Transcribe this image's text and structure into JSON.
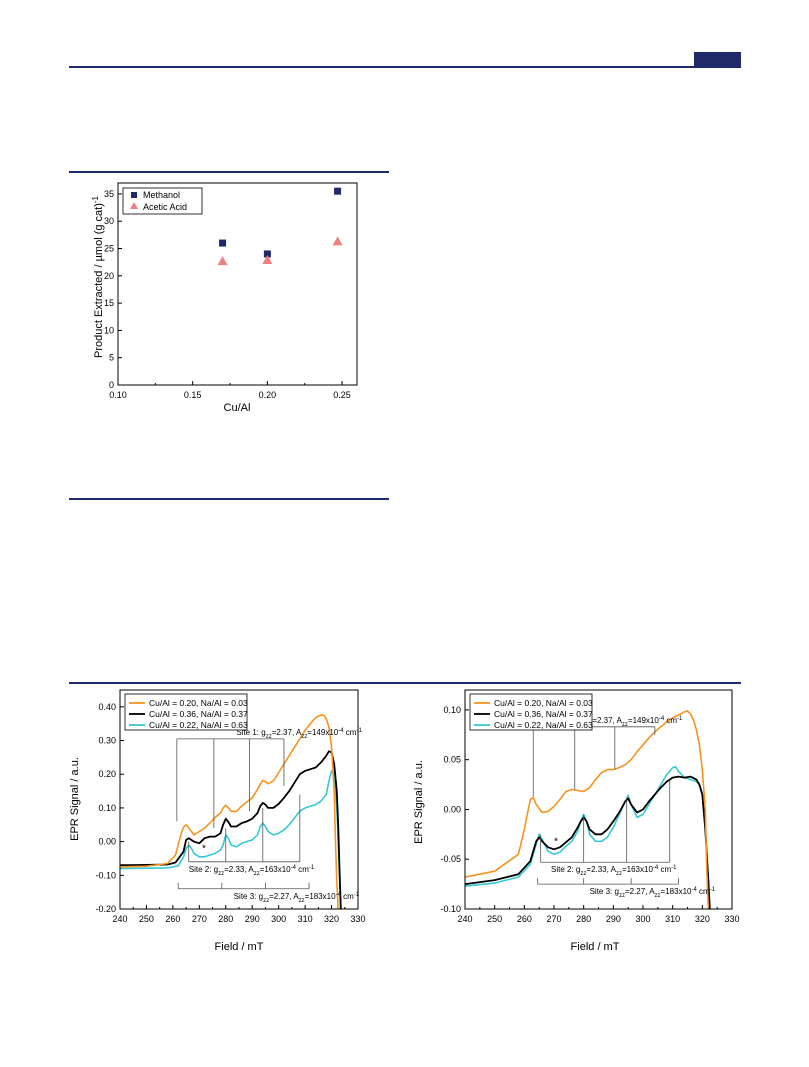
{
  "colors": {
    "rule": "#1f2a6b",
    "methanol": "#1f2a6b",
    "acetic": "#f08080",
    "orange": "#f7931e",
    "black": "#000000",
    "cyan": "#36c8d8"
  },
  "chart_data": [
    {
      "type": "scatter",
      "xlabel": "Cu/Al",
      "ylabel": "Product Extracted / µmol (g cat)",
      "ylabel_sup": "-1",
      "xlim": [
        0.1,
        0.26
      ],
      "ylim": [
        0,
        37
      ],
      "xticks": [
        0.1,
        0.15,
        0.2,
        0.25
      ],
      "xtick_labels": [
        "0.10",
        "0.15",
        "0.20",
        "0.25"
      ],
      "yticks": [
        0,
        5,
        10,
        15,
        20,
        25,
        30,
        35
      ],
      "ytick_labels": [
        "0",
        "5",
        "10",
        "15",
        "20",
        "25",
        "30",
        "35"
      ],
      "legend_position": "top-left",
      "series": [
        {
          "name": "Methanol",
          "marker": "square",
          "x": [
            0.17,
            0.2,
            0.247
          ],
          "y": [
            26.0,
            24.0,
            35.5
          ]
        },
        {
          "name": "Acetic Acid",
          "marker": "triangle",
          "x": [
            0.17,
            0.2,
            0.247
          ],
          "y": [
            22.7,
            22.9,
            26.3
          ]
        }
      ]
    },
    {
      "type": "line",
      "xlabel": "Field / mT",
      "ylabel": "EPR Signal / a.u.",
      "xlim": [
        240,
        330
      ],
      "ylim": [
        -0.2,
        0.45
      ],
      "xticks": [
        240,
        250,
        260,
        270,
        280,
        290,
        300,
        310,
        320,
        330
      ],
      "xtick_labels": [
        "240",
        "250",
        "260",
        "270",
        "280",
        "290",
        "300",
        "310",
        "320",
        "330"
      ],
      "yticks": [
        -0.2,
        -0.1,
        0.0,
        0.1,
        0.2,
        0.3,
        0.4
      ],
      "ytick_labels": [
        "-0.20",
        "-0.10",
        "0.00",
        "0.10",
        "0.20",
        "0.30",
        "0.40"
      ],
      "legend_position": "top-left",
      "legend": [
        "Cu/Al = 0.20, Na/Al = 0.03",
        "Cu/Al = 0.36, Na/Al = 0.37",
        "Cu/Al = 0.22, Na/Al = 0.63"
      ],
      "annotations": {
        "site1": {
          "text": "Site 1: g",
          "sub": "zz",
          "sup": "1",
          "text2": "=2.37, A",
          "sub2": "zz",
          "sup2": "1",
          "text3": "=149x10",
          "sup3": "-4",
          "text4": " cm",
          "sup4": "-1"
        },
        "site2": {
          "text": "Site 2: g",
          "sub": "zz",
          "sup": "2",
          "text2": "=2.33, A",
          "sub2": "zz",
          "sup2": "2",
          "text3": "=163x10",
          "sup3": "-4",
          "text4": " cm",
          "sup4": "-1"
        },
        "site3": {
          "text": "Site 3: g",
          "sub": "zz",
          "sup": "3",
          "text2": "=2.27, A",
          "sub2": "zz",
          "sup2": "3",
          "text3": "=183x10",
          "sup3": "-4",
          "text4": " cm",
          "sup4": "-1"
        },
        "star": "*"
      },
      "site1_lines": [
        261.5,
        275.5,
        289.0,
        302.0
      ],
      "site2_lines": [
        266.0,
        280.0,
        294.0,
        308.0
      ],
      "site3_lines": [
        262.0,
        278.5,
        295.0,
        311.5
      ],
      "series": [
        {
          "name": "Cu/Al = 0.20, Na/Al = 0.03",
          "color": "#f7931e",
          "x": [
            240,
            250,
            258,
            261,
            263,
            264,
            265,
            266,
            268,
            270,
            272,
            274,
            276,
            278,
            279,
            280,
            281,
            282,
            284,
            286,
            288,
            290,
            292,
            293,
            294,
            295,
            296,
            298,
            300,
            302,
            304,
            306,
            308,
            310,
            312,
            314,
            316,
            317,
            318,
            319,
            320,
            321,
            321.5,
            322,
            322.5
          ],
          "y": [
            -0.075,
            -0.073,
            -0.065,
            -0.04,
            0.02,
            0.043,
            0.05,
            0.04,
            0.02,
            0.03,
            0.04,
            0.055,
            0.072,
            0.085,
            0.1,
            0.108,
            0.1,
            0.09,
            0.09,
            0.105,
            0.118,
            0.13,
            0.155,
            0.17,
            0.182,
            0.178,
            0.172,
            0.18,
            0.205,
            0.23,
            0.255,
            0.28,
            0.305,
            0.33,
            0.35,
            0.368,
            0.376,
            0.375,
            0.365,
            0.34,
            0.28,
            0.15,
            0.0,
            -0.12,
            -0.2
          ]
        },
        {
          "name": "Cu/Al = 0.36, Na/Al = 0.37",
          "color": "#000000",
          "x": [
            240,
            250,
            258,
            261,
            264,
            265,
            266,
            268,
            270,
            272,
            274,
            276,
            278,
            279,
            280,
            281,
            282,
            284,
            286,
            288,
            290,
            292,
            293,
            294,
            295,
            296,
            298,
            300,
            302,
            304,
            306,
            308,
            310,
            312,
            314,
            316,
            318,
            319,
            320,
            321,
            322,
            322.5,
            323,
            323.5
          ],
          "y": [
            -0.07,
            -0.069,
            -0.068,
            -0.062,
            -0.03,
            0.005,
            0.01,
            0.0,
            -0.005,
            0.01,
            0.015,
            0.015,
            0.025,
            0.05,
            0.068,
            0.058,
            0.045,
            0.045,
            0.055,
            0.06,
            0.068,
            0.085,
            0.105,
            0.115,
            0.11,
            0.1,
            0.1,
            0.112,
            0.13,
            0.15,
            0.175,
            0.2,
            0.21,
            0.215,
            0.22,
            0.235,
            0.255,
            0.268,
            0.265,
            0.23,
            0.15,
            0.05,
            -0.08,
            -0.2
          ]
        },
        {
          "name": "Cu/Al = 0.22, Na/Al = 0.63",
          "color": "#36c8d8",
          "x": [
            240,
            250,
            258,
            262,
            264,
            265,
            266,
            267,
            268,
            270,
            272,
            274,
            276,
            278,
            279,
            280,
            281,
            282,
            284,
            286,
            288,
            290,
            292,
            293,
            294,
            295,
            296,
            298,
            300,
            302,
            304,
            306,
            308,
            310,
            312,
            314,
            316,
            318,
            319,
            320,
            321,
            322,
            322.5,
            323,
            323.5
          ],
          "y": [
            -0.08,
            -0.079,
            -0.078,
            -0.072,
            -0.045,
            -0.02,
            -0.01,
            -0.02,
            -0.035,
            -0.045,
            -0.045,
            -0.04,
            -0.035,
            -0.025,
            -0.01,
            0.02,
            0.01,
            -0.01,
            -0.015,
            -0.005,
            0.0,
            0.005,
            0.02,
            0.045,
            0.055,
            0.045,
            0.03,
            0.02,
            0.025,
            0.035,
            0.05,
            0.07,
            0.09,
            0.1,
            0.105,
            0.11,
            0.12,
            0.14,
            0.18,
            0.21,
            0.2,
            0.1,
            0.0,
            -0.1,
            -0.2
          ]
        }
      ]
    },
    {
      "type": "line",
      "xlabel": "Field / mT",
      "ylabel": "EPR Signal / a.u.",
      "xlim": [
        240,
        330
      ],
      "ylim": [
        -0.1,
        0.12
      ],
      "xticks": [
        240,
        250,
        260,
        270,
        280,
        290,
        300,
        310,
        320,
        330
      ],
      "xtick_labels": [
        "240",
        "250",
        "260",
        "270",
        "280",
        "290",
        "300",
        "310",
        "320",
        "330"
      ],
      "yticks": [
        -0.1,
        -0.05,
        0.0,
        0.05,
        0.1
      ],
      "ytick_labels": [
        "-0.10",
        "-0.05",
        "0.00",
        "0.05",
        "0.10"
      ],
      "legend_position": "top-left",
      "legend": [
        "Cu/Al = 0.20, Na/Al = 0.03",
        "Cu/Al = 0.36, Na/Al = 0.37",
        "Cu/Al = 0.22, Na/Al = 0.63"
      ],
      "annotations": {
        "site1": {
          "text": "Site 1: g",
          "sub": "zz",
          "sup": "1",
          "text2": "=2.37, A",
          "sub2": "zz",
          "sup2": "1",
          "text3": "=149x10",
          "sup3": "-4",
          "text4": " cm",
          "sup4": "-1"
        },
        "site2": {
          "text": "Site 2: g",
          "sub": "zz",
          "sup": "2",
          "text2": "=2.33, A",
          "sub2": "zz",
          "sup2": "2",
          "text3": "=163x10",
          "sup3": "-4",
          "text4": " cm",
          "sup4": "-1"
        },
        "site3": {
          "text": "Site 3: g",
          "sub": "zz",
          "sup": "3",
          "text2": "=2.27, A",
          "sub2": "zz",
          "sup2": "3",
          "text3": "=183x10",
          "sup3": "-4",
          "text4": " cm",
          "sup4": "-1"
        },
        "star": "*"
      },
      "site1_lines": [
        263.0,
        277.0,
        290.5,
        304.0
      ],
      "site2_lines": [
        265.5,
        280.0,
        294.5,
        309.0
      ],
      "site3_lines": [
        264.5,
        280.0,
        296.0,
        312.0
      ],
      "series": [
        {
          "name": "Cu/Al = 0.20, Na/Al = 0.03",
          "color": "#f7931e",
          "x": [
            240,
            250,
            258,
            260,
            262,
            263,
            264,
            266,
            268,
            270,
            272,
            274,
            276,
            278,
            280,
            282,
            284,
            286,
            288,
            290,
            292,
            294,
            296,
            298,
            300,
            302,
            304,
            306,
            308,
            310,
            312,
            314,
            315,
            316,
            317,
            318,
            319,
            320,
            321,
            321.5,
            322
          ],
          "y": [
            -0.068,
            -0.062,
            -0.045,
            -0.02,
            0.01,
            0.012,
            0.005,
            -0.003,
            -0.002,
            0.003,
            0.01,
            0.018,
            0.02,
            0.019,
            0.018,
            0.022,
            0.03,
            0.037,
            0.04,
            0.04,
            0.042,
            0.045,
            0.05,
            0.058,
            0.065,
            0.072,
            0.078,
            0.083,
            0.088,
            0.092,
            0.095,
            0.098,
            0.099,
            0.096,
            0.09,
            0.08,
            0.065,
            0.04,
            0.0,
            -0.06,
            -0.1
          ]
        },
        {
          "name": "Cu/Al = 0.36, Na/Al = 0.37",
          "color": "#000000",
          "x": [
            240,
            250,
            258,
            262,
            264,
            265,
            266,
            268,
            270,
            272,
            274,
            276,
            278,
            279,
            280,
            281,
            282,
            284,
            286,
            288,
            290,
            292,
            294,
            295,
            296,
            298,
            300,
            302,
            304,
            306,
            308,
            310,
            312,
            314,
            316,
            318,
            319,
            320,
            321,
            322,
            322.5
          ],
          "y": [
            -0.075,
            -0.071,
            -0.065,
            -0.052,
            -0.032,
            -0.028,
            -0.032,
            -0.038,
            -0.04,
            -0.038,
            -0.033,
            -0.028,
            -0.018,
            -0.012,
            -0.008,
            -0.012,
            -0.02,
            -0.025,
            -0.025,
            -0.02,
            -0.012,
            -0.003,
            0.008,
            0.011,
            0.005,
            -0.003,
            0.0,
            0.008,
            0.015,
            0.022,
            0.028,
            0.032,
            0.033,
            0.032,
            0.033,
            0.03,
            0.025,
            0.015,
            -0.02,
            -0.07,
            -0.1
          ]
        },
        {
          "name": "Cu/Al = 0.22, Na/Al = 0.63",
          "color": "#36c8d8",
          "x": [
            240,
            250,
            258,
            262,
            264,
            265,
            266,
            268,
            270,
            272,
            274,
            276,
            278,
            279,
            280,
            281,
            282,
            284,
            286,
            288,
            290,
            292,
            294,
            295,
            296,
            298,
            300,
            302,
            304,
            306,
            308,
            310,
            311,
            312,
            314,
            316,
            318,
            319,
            320,
            321,
            322,
            322.5
          ],
          "y": [
            -0.077,
            -0.074,
            -0.068,
            -0.055,
            -0.035,
            -0.025,
            -0.03,
            -0.042,
            -0.045,
            -0.043,
            -0.037,
            -0.032,
            -0.022,
            -0.012,
            -0.005,
            -0.012,
            -0.025,
            -0.032,
            -0.032,
            -0.028,
            -0.018,
            -0.005,
            0.008,
            0.014,
            0.005,
            -0.008,
            -0.005,
            0.005,
            0.015,
            0.025,
            0.035,
            0.042,
            0.043,
            0.038,
            0.032,
            0.03,
            0.028,
            0.025,
            0.015,
            -0.02,
            -0.07,
            -0.1
          ]
        }
      ]
    }
  ]
}
